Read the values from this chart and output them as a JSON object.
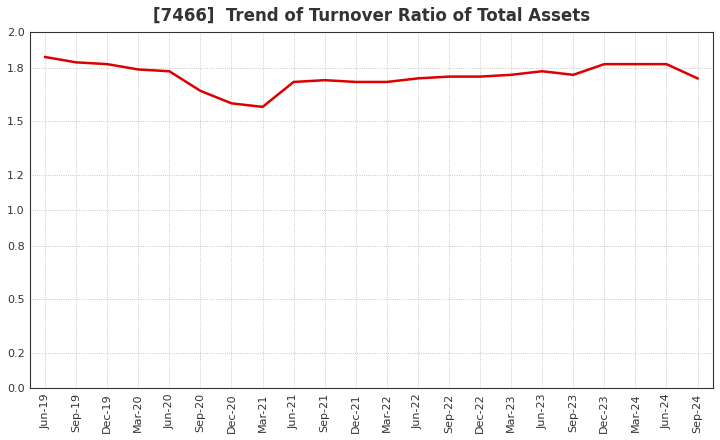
{
  "title": "[7466]  Trend of Turnover Ratio of Total Assets",
  "x_labels": [
    "Jun-19",
    "Sep-19",
    "Dec-19",
    "Mar-20",
    "Jun-20",
    "Sep-20",
    "Dec-20",
    "Mar-21",
    "Jun-21",
    "Sep-21",
    "Dec-21",
    "Mar-22",
    "Jun-22",
    "Sep-22",
    "Dec-22",
    "Mar-23",
    "Jun-23",
    "Sep-23",
    "Dec-23",
    "Mar-24",
    "Jun-24",
    "Sep-24"
  ],
  "y_values": [
    1.86,
    1.83,
    1.82,
    1.79,
    1.78,
    1.67,
    1.6,
    1.58,
    1.72,
    1.73,
    1.72,
    1.72,
    1.74,
    1.75,
    1.75,
    1.76,
    1.78,
    1.76,
    1.82,
    1.82,
    1.82,
    1.74
  ],
  "ylim": [
    0.0,
    2.0
  ],
  "ytick_vals": [
    0.0,
    0.2,
    0.5,
    0.8,
    1.0,
    1.2,
    1.5,
    1.8,
    2.0
  ],
  "line_color": "#dd0000",
  "line_width": 1.8,
  "bg_color": "#ffffff",
  "grid_color": "#999999",
  "title_fontsize": 12,
  "tick_fontsize": 8,
  "title_color": "#333333"
}
